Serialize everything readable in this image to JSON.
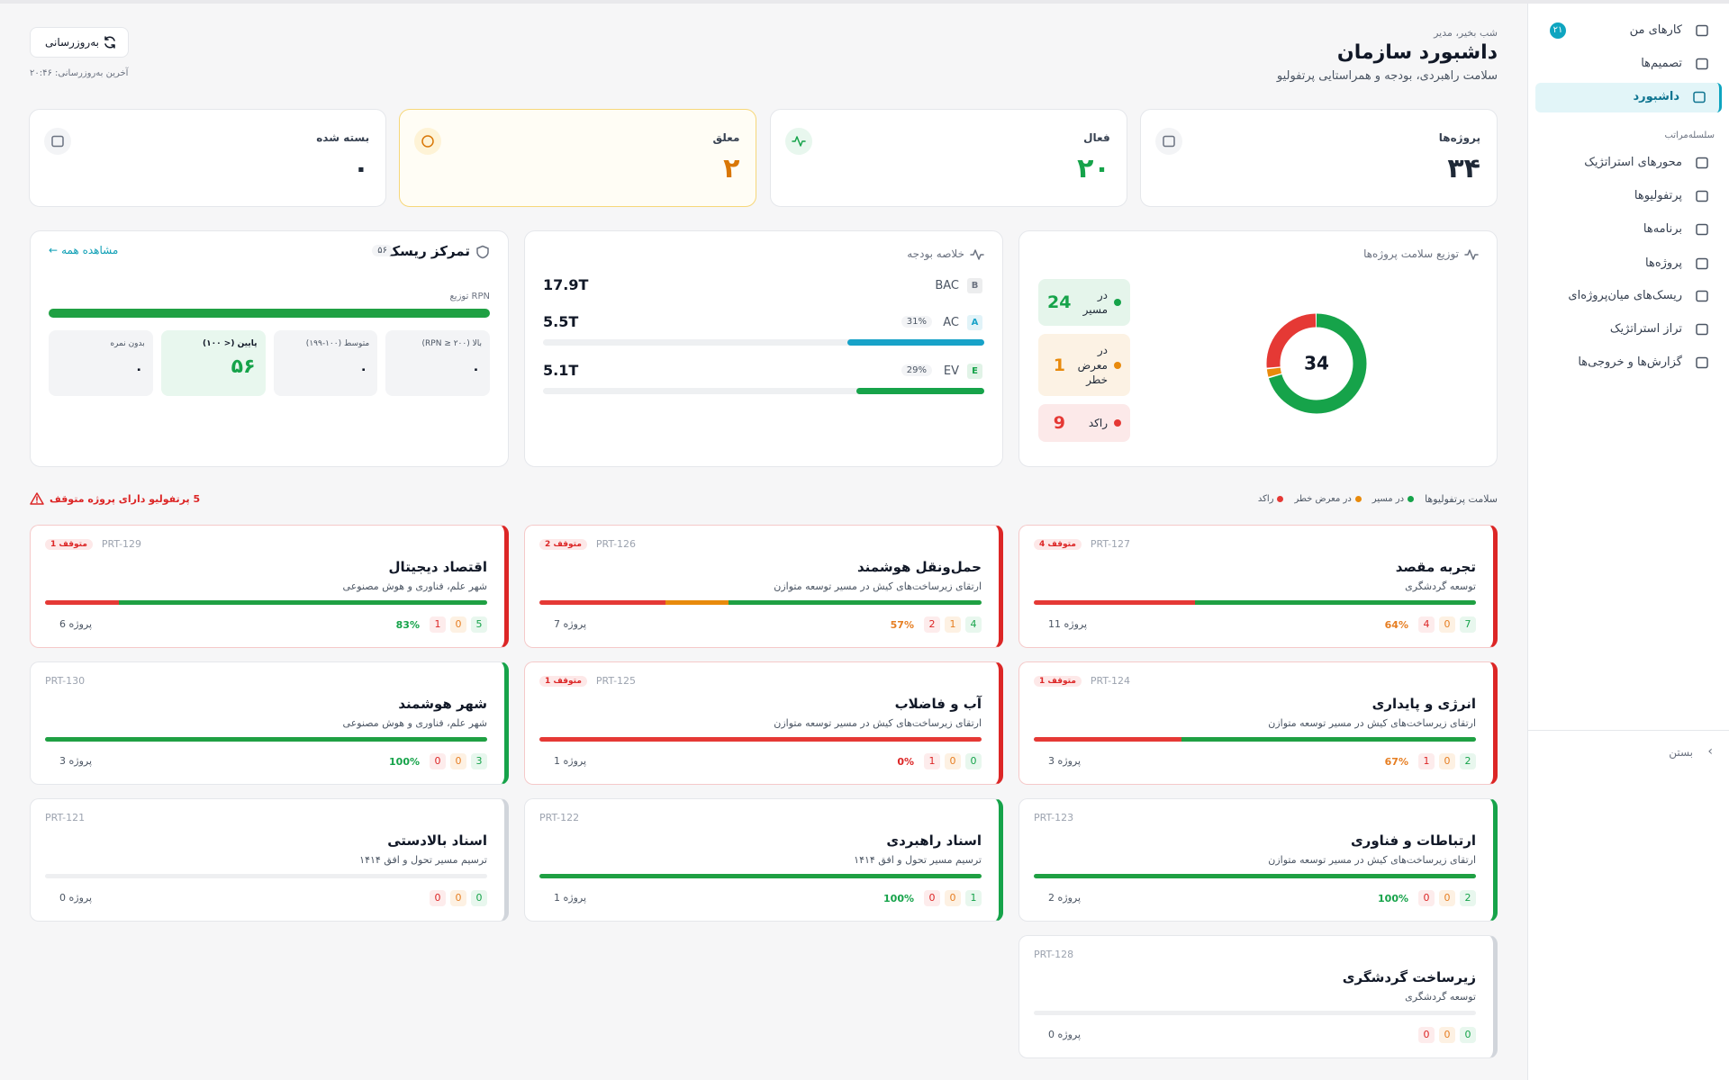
{
  "sidebar": {
    "items": [
      {
        "label": "کارهای من",
        "badge": "۲۱"
      },
      {
        "label": "تصمیم‌ها"
      },
      {
        "label": "داشبورد",
        "active": true
      }
    ],
    "section": "سلسله‌مراتب",
    "hierarchy": [
      "محورهای استراتژیک",
      "پرتفولیوها",
      "برنامه‌ها",
      "پروژه‌ها",
      "ریسک‌های میان‌پروژه‌ای",
      "تراز استراتژیک",
      "گزارش‌ها و خروجی‌ها"
    ],
    "close": "بستن"
  },
  "header": {
    "greeting": "شب بخیر، مدیر",
    "title": "داشبورد سازمان",
    "subtitle": "سلامت راهبردی، بودجه و همراستایی پرتفولیو",
    "refresh": "به‌روزرسانی",
    "last_update": "آخرین به‌روزرسانی: ۲۰:۴۶"
  },
  "kpis": [
    {
      "label": "پروژه‌ها",
      "value": "۳۴",
      "color": "#1f2937"
    },
    {
      "label": "فعال",
      "value": "۲۰",
      "color": "#16a34a"
    },
    {
      "label": "معلق",
      "value": "۲",
      "color": "#d97706"
    },
    {
      "label": "بسته شده",
      "value": "۰",
      "color": "#1f2937"
    }
  ],
  "health": {
    "title": "توزیع سلامت پروژه‌ها",
    "total": 34,
    "segments": [
      {
        "name": "در مسیر",
        "value": 24,
        "color": "#16a34a"
      },
      {
        "name": "در معرض خطر",
        "value": 1,
        "color": "#e88a0c"
      },
      {
        "name": "راکد",
        "value": 9,
        "color": "#e53935"
      }
    ]
  },
  "budget": {
    "title": "خلاصه بودجه",
    "rows": [
      {
        "letter": "B",
        "name": "BAC",
        "amount": "17.9T"
      },
      {
        "letter": "A",
        "name": "AC",
        "amount": "5.5T",
        "percent": {
          "value": 31,
          "label": "31%"
        },
        "color": "#17a2c8"
      },
      {
        "letter": "E",
        "name": "EV",
        "amount": "5.1T",
        "percent": {
          "value": 29,
          "label": "29%"
        },
        "color": "#16a34a"
      }
    ]
  },
  "risk": {
    "title": "تمرکز ریسک",
    "count": "۵۶",
    "link": "مشاهده همه",
    "distribution_label": "توزیع RPN",
    "levels": [
      {
        "label": "بالا (RPN ≥ ۲۰۰)",
        "value": "۰"
      },
      {
        "label": "متوسط (۱۰۰-۱۹۹)",
        "value": "۰"
      },
      {
        "label": "پایین (< ۱۰۰)",
        "value": "۵۶",
        "highlight": true
      },
      {
        "label": "بدون نمره",
        "value": "۰"
      }
    ]
  },
  "portfolios": {
    "title": "سلامت پرتفولیوها",
    "alert": "5 پرتفولیو دارای پروژه متوقف",
    "cards": [
      {
        "code": "PRT-127",
        "badge": "4 متوقف",
        "title": "تجربه مقصد",
        "subtitle": "توسعه گردشگری",
        "on_track": 7,
        "at_risk": 0,
        "stalled": 4,
        "percent": "64%",
        "percent_color": "#e67e22",
        "projects": "11 پروژه",
        "accent": "#dc2626"
      },
      {
        "code": "PRT-126",
        "badge": "2 متوقف",
        "title": "حمل‌ونقل هوشمند",
        "subtitle": "ارتقای زیرساخت‌های کیش در مسیر توسعه متوازن",
        "on_track": 4,
        "at_risk": 1,
        "stalled": 2,
        "percent": "57%",
        "percent_color": "#e67e22",
        "projects": "7 پروژه",
        "accent": "#dc2626"
      },
      {
        "code": "PRT-129",
        "badge": "1 متوقف",
        "title": "اقتصاد دیجیتال",
        "subtitle": "شهر علم، فناوری و هوش مصنوعی",
        "on_track": 5,
        "at_risk": 0,
        "stalled": 1,
        "percent": "83%",
        "percent_color": "#16a34a",
        "projects": "6 پروژه",
        "accent": "#dc2626"
      },
      {
        "code": "PRT-124",
        "badge": "1 متوقف",
        "title": "انرژی و پایداری",
        "subtitle": "ارتقای زیرساخت‌های کیش در مسیر توسعه متوازن",
        "on_track": 2,
        "at_risk": 0,
        "stalled": 1,
        "percent": "67%",
        "percent_color": "#e67e22",
        "projects": "3 پروژه",
        "accent": "#dc2626"
      },
      {
        "code": "PRT-125",
        "badge": "1 متوقف",
        "title": "آب و فاضلاب",
        "subtitle": "ارتقای زیرساخت‌های کیش در مسیر توسعه متوازن",
        "on_track": 0,
        "at_risk": 0,
        "stalled": 1,
        "percent": "0%",
        "percent_color": "#dc2626",
        "projects": "1 پروژه",
        "accent": "#dc2626"
      },
      {
        "code": "PRT-130",
        "title": "شهر هوشمند",
        "subtitle": "شهر علم، فناوری و هوش مصنوعی",
        "on_track": 3,
        "at_risk": 0,
        "stalled": 0,
        "percent": "100%",
        "percent_color": "#16a34a",
        "projects": "3 پروژه",
        "accent": "#16a34a"
      },
      {
        "code": "PRT-123",
        "title": "ارتباطات و فناوری",
        "subtitle": "ارتقای زیرساخت‌های کیش در مسیر توسعه متوازن",
        "on_track": 2,
        "at_risk": 0,
        "stalled": 0,
        "percent": "100%",
        "percent_color": "#16a34a",
        "projects": "2 پروژه",
        "accent": "#16a34a"
      },
      {
        "code": "PRT-122",
        "title": "اسناد راهبردی",
        "subtitle": "ترسیم مسیر تحول و افق ۱۴۱۴",
        "on_track": 1,
        "at_risk": 0,
        "stalled": 0,
        "percent": "100%",
        "percent_color": "#16a34a",
        "projects": "1 پروژه",
        "accent": "#16a34a"
      },
      {
        "code": "PRT-121",
        "title": "اسناد بالادستی",
        "subtitle": "ترسیم مسیر تحول و افق ۱۴۱۴",
        "on_track": 0,
        "at_risk": 0,
        "stalled": 0,
        "projects": "0 پروژه",
        "accent": "#d1d5db"
      },
      {
        "code": "PRT-128",
        "title": "زیرساخت گردشگری",
        "subtitle": "توسعه گردشگری",
        "on_track": 0,
        "at_risk": 0,
        "stalled": 0,
        "projects": "0 پروژه",
        "accent": "#d1d5db"
      }
    ]
  }
}
